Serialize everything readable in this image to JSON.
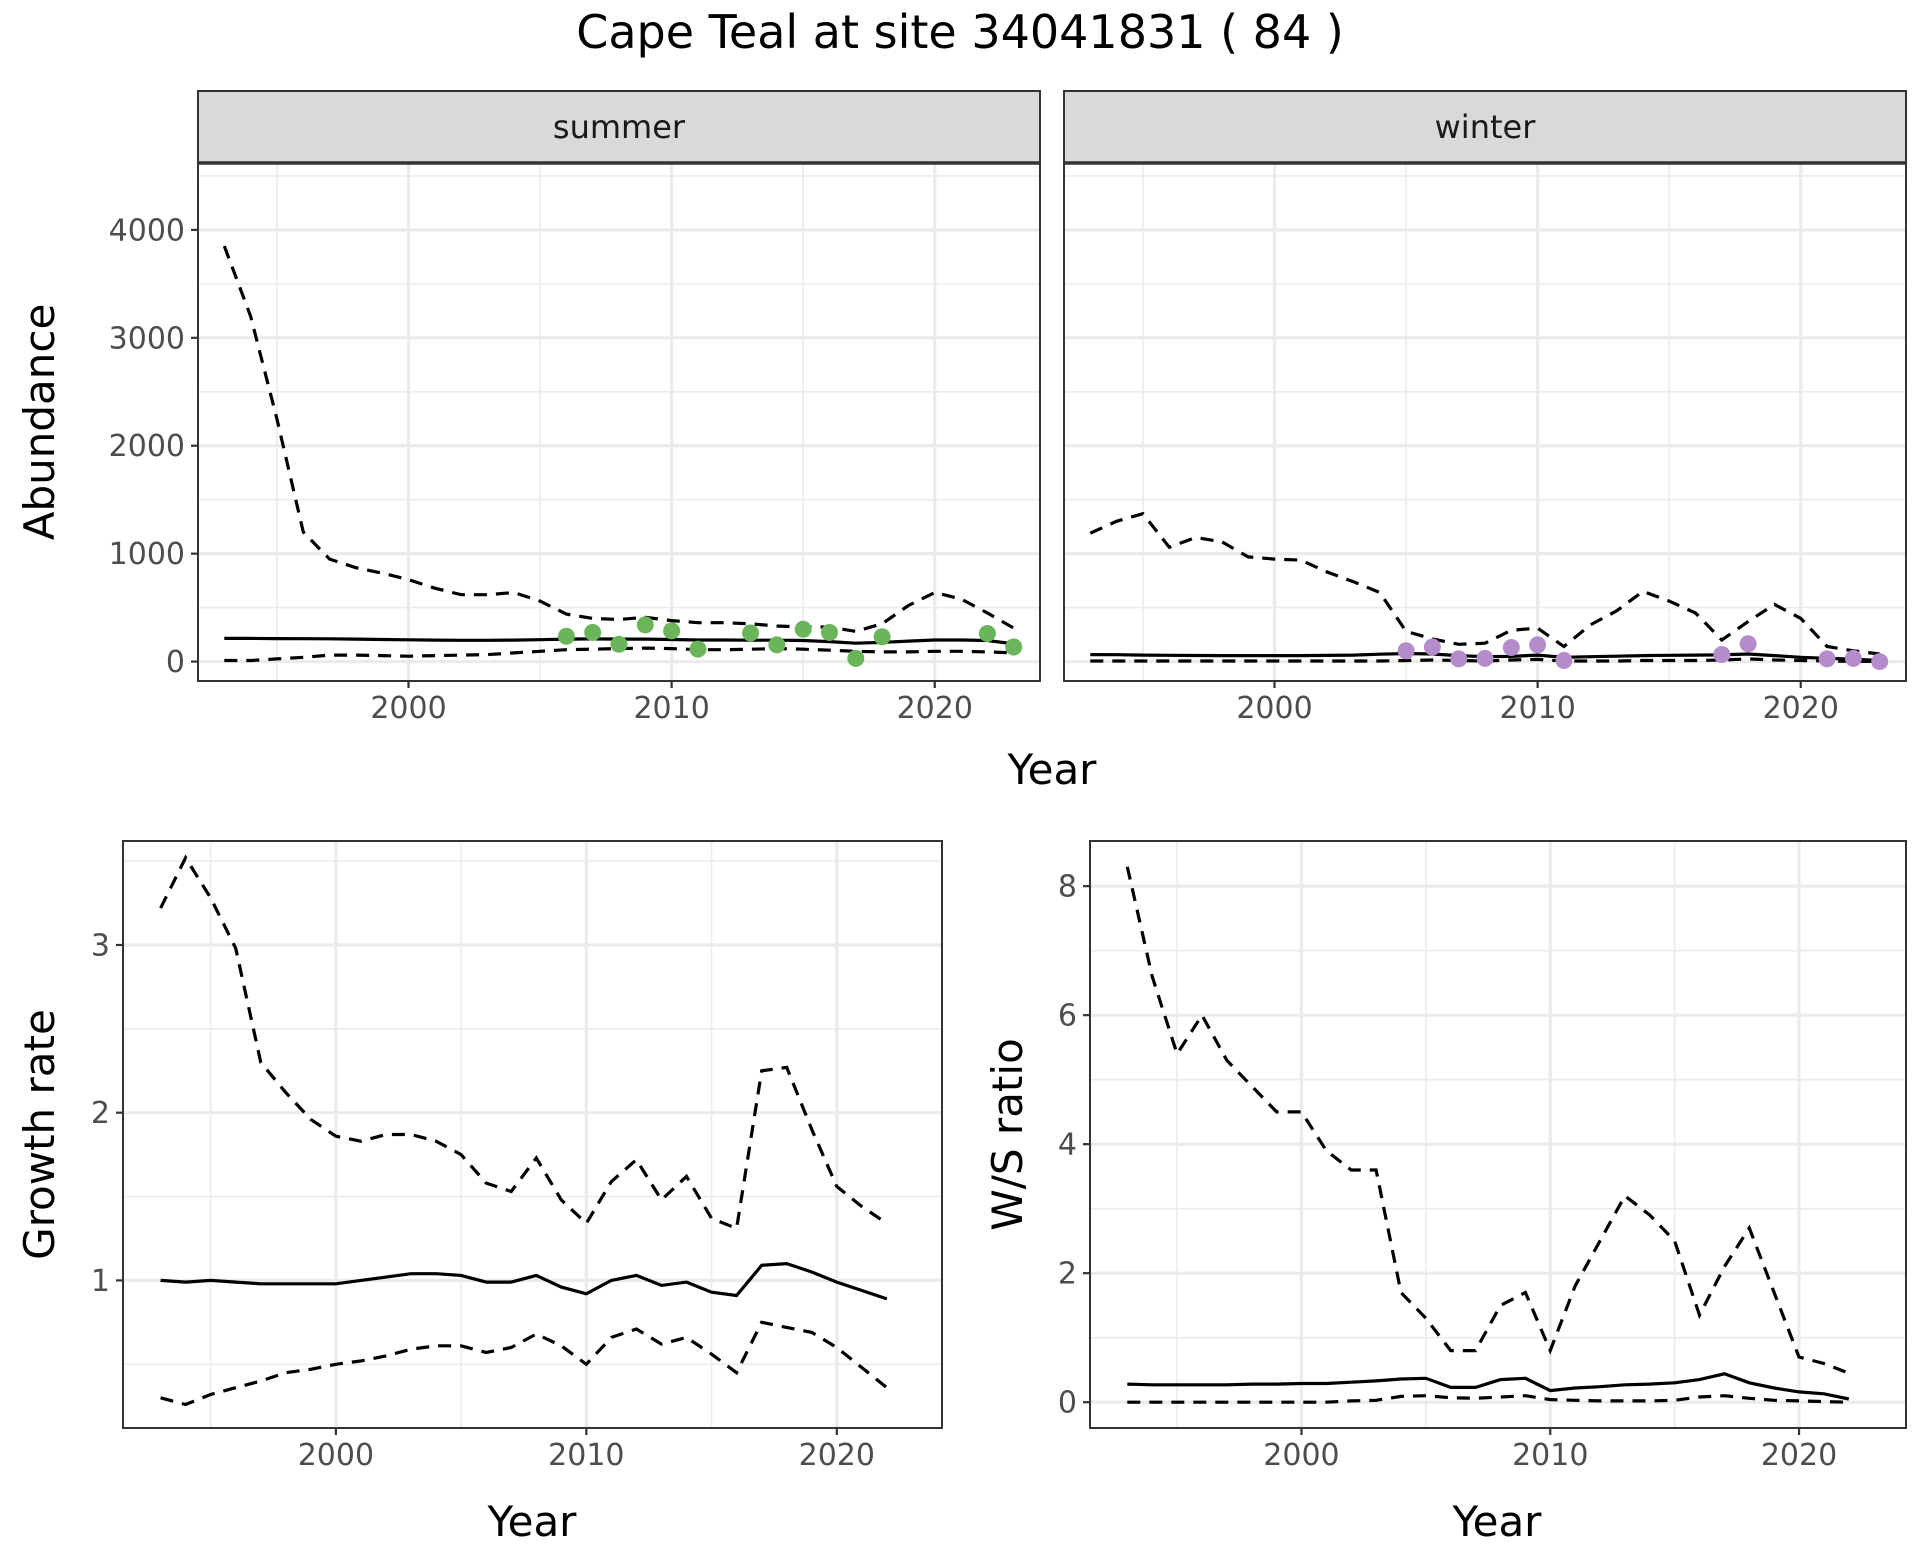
{
  "title": "Cape Teal at site 34041831 ( 84 )",
  "colors": {
    "summer_points": "#6ab55a",
    "winter_points": "#b48ccc",
    "lines": "#000000",
    "strip": "#d9d9d9"
  },
  "chart_data": [
    {
      "type": "line",
      "panel": "summer",
      "strip_label": "summer",
      "xlabel": "Year",
      "ylabel": "Abundance",
      "xlim": [
        1992,
        2024
      ],
      "ylim": [
        -180,
        4620
      ],
      "x_ticks": [
        2000,
        2010,
        2020
      ],
      "x_tick_labels": [
        "2000",
        "2010",
        "2020"
      ],
      "y_ticks": [
        0,
        1000,
        2000,
        3000,
        4000
      ],
      "y_tick_labels": [
        "0",
        "1000",
        "2000",
        "3000",
        "4000"
      ],
      "grid": true,
      "series": [
        {
          "role": "mean",
          "style": "solid",
          "x": [
            1993,
            1994,
            1995,
            1996,
            1997,
            1998,
            1999,
            2000,
            2001,
            2002,
            2003,
            2004,
            2005,
            2006,
            2007,
            2008,
            2009,
            2010,
            2011,
            2012,
            2013,
            2014,
            2015,
            2016,
            2017,
            2018,
            2019,
            2020,
            2021,
            2022,
            2023
          ],
          "y": [
            215,
            215,
            213,
            212,
            211,
            208,
            205,
            202,
            199,
            197,
            197,
            199,
            203,
            208,
            210,
            208,
            208,
            205,
            200,
            200,
            198,
            198,
            195,
            185,
            170,
            178,
            190,
            200,
            200,
            195,
            165
          ]
        },
        {
          "role": "upper",
          "style": "dashed",
          "x": [
            1993,
            1994,
            1995,
            1996,
            1997,
            1998,
            1999,
            2000,
            2001,
            2002,
            2003,
            2004,
            2005,
            2006,
            2007,
            2008,
            2009,
            2010,
            2011,
            2012,
            2013,
            2014,
            2015,
            2016,
            2017,
            2018,
            2019,
            2020,
            2021,
            2022,
            2023
          ],
          "y": [
            3850,
            3200,
            2250,
            1200,
            950,
            870,
            820,
            760,
            680,
            620,
            620,
            640,
            560,
            440,
            400,
            390,
            410,
            380,
            360,
            360,
            350,
            330,
            320,
            320,
            280,
            350,
            520,
            640,
            580,
            450,
            310
          ]
        },
        {
          "role": "lower",
          "style": "dashed",
          "x": [
            1993,
            1994,
            1995,
            1996,
            1997,
            1998,
            1999,
            2000,
            2001,
            2002,
            2003,
            2004,
            2005,
            2006,
            2007,
            2008,
            2009,
            2010,
            2011,
            2012,
            2013,
            2014,
            2015,
            2016,
            2017,
            2018,
            2019,
            2020,
            2021,
            2022,
            2023
          ],
          "y": [
            10,
            10,
            25,
            40,
            60,
            60,
            55,
            50,
            55,
            60,
            65,
            80,
            95,
            110,
            115,
            120,
            125,
            120,
            110,
            110,
            115,
            120,
            115,
            105,
            95,
            90,
            90,
            95,
            95,
            90,
            80
          ]
        }
      ],
      "points": {
        "x": [
          2006,
          2007,
          2008,
          2009,
          2010,
          2011,
          2013,
          2014,
          2015,
          2016,
          2017,
          2018,
          2022,
          2023
        ],
        "y": [
          235,
          270,
          160,
          340,
          285,
          115,
          265,
          155,
          300,
          270,
          30,
          230,
          260,
          135
        ]
      }
    },
    {
      "type": "line",
      "panel": "winter",
      "strip_label": "winter",
      "xlabel": "Year",
      "ylabel": "Abundance",
      "xlim": [
        1992,
        2024
      ],
      "ylim": [
        -180,
        4620
      ],
      "x_ticks": [
        2000,
        2010,
        2020
      ],
      "x_tick_labels": [
        "2000",
        "2010",
        "2020"
      ],
      "y_ticks": [
        0,
        1000,
        2000,
        3000,
        4000
      ],
      "grid": true,
      "series": [
        {
          "role": "mean",
          "style": "solid",
          "x": [
            1993,
            1994,
            1995,
            1996,
            1997,
            1998,
            1999,
            2000,
            2001,
            2002,
            2003,
            2004,
            2005,
            2006,
            2007,
            2008,
            2009,
            2010,
            2011,
            2012,
            2013,
            2014,
            2015,
            2016,
            2017,
            2018,
            2019,
            2020,
            2021,
            2022,
            2023
          ],
          "y": [
            65,
            64,
            60,
            58,
            56,
            55,
            55,
            55,
            55,
            57,
            60,
            68,
            75,
            70,
            55,
            45,
            48,
            60,
            40,
            45,
            50,
            55,
            58,
            60,
            62,
            70,
            55,
            40,
            30,
            22,
            10
          ]
        },
        {
          "role": "upper",
          "style": "dashed",
          "x": [
            1993,
            1994,
            1995,
            1996,
            1997,
            1998,
            1999,
            2000,
            2001,
            2002,
            2003,
            2004,
            2005,
            2006,
            2007,
            2008,
            2009,
            2010,
            2011,
            2012,
            2013,
            2014,
            2015,
            2016,
            2017,
            2018,
            2019,
            2020,
            2021,
            2022,
            2023
          ],
          "y": [
            1190,
            1300,
            1370,
            1060,
            1150,
            1110,
            970,
            950,
            940,
            830,
            740,
            640,
            280,
            210,
            160,
            170,
            290,
            310,
            140,
            340,
            470,
            650,
            560,
            450,
            200,
            370,
            530,
            400,
            140,
            100,
            70
          ]
        },
        {
          "role": "lower",
          "style": "dashed",
          "x": [
            1993,
            1994,
            1995,
            1996,
            1997,
            1998,
            1999,
            2000,
            2001,
            2002,
            2003,
            2004,
            2005,
            2006,
            2007,
            2008,
            2009,
            2010,
            2011,
            2012,
            2013,
            2014,
            2015,
            2016,
            2017,
            2018,
            2019,
            2020,
            2021,
            2022,
            2023
          ],
          "y": [
            5,
            5,
            5,
            5,
            5,
            5,
            5,
            5,
            5,
            5,
            5,
            5,
            10,
            15,
            10,
            5,
            15,
            20,
            5,
            5,
            5,
            10,
            10,
            10,
            15,
            25,
            15,
            10,
            5,
            3,
            2
          ]
        }
      ],
      "points": {
        "x": [
          2005,
          2006,
          2007,
          2008,
          2009,
          2010,
          2011,
          2017,
          2018,
          2021,
          2022,
          2023
        ],
        "y": [
          100,
          135,
          25,
          30,
          130,
          155,
          10,
          65,
          165,
          25,
          30,
          0
        ]
      }
    },
    {
      "type": "line",
      "panel": "growth",
      "xlabel": "Year",
      "ylabel": "Growth rate",
      "xlim": [
        1991.5,
        2024.2
      ],
      "ylim": [
        0.12,
        3.62
      ],
      "x_ticks": [
        2000,
        2010,
        2020
      ],
      "x_tick_labels": [
        "2000",
        "2010",
        "2020"
      ],
      "y_ticks": [
        1,
        2,
        3
      ],
      "y_tick_labels": [
        "1",
        "2",
        "3"
      ],
      "grid": true,
      "series": [
        {
          "role": "mean",
          "style": "solid",
          "x": [
            1993,
            1994,
            1995,
            1996,
            1997,
            1998,
            1999,
            2000,
            2001,
            2002,
            2003,
            2004,
            2005,
            2006,
            2007,
            2008,
            2009,
            2010,
            2011,
            2012,
            2013,
            2014,
            2015,
            2016,
            2017,
            2018,
            2019,
            2020,
            2021,
            2022
          ],
          "y": [
            1.0,
            0.99,
            1.0,
            0.99,
            0.98,
            0.98,
            0.98,
            0.98,
            1.0,
            1.02,
            1.04,
            1.04,
            1.03,
            0.99,
            0.99,
            1.03,
            0.96,
            0.92,
            1.0,
            1.03,
            0.97,
            0.99,
            0.93,
            0.91,
            1.09,
            1.1,
            1.05,
            0.99,
            0.94,
            0.89
          ]
        },
        {
          "role": "upper",
          "style": "dashed",
          "x": [
            1993,
            1994,
            1995,
            1996,
            1997,
            1998,
            1999,
            2000,
            2001,
            2002,
            2003,
            2004,
            2005,
            2006,
            2007,
            2008,
            2009,
            2010,
            2011,
            2012,
            2013,
            2014,
            2015,
            2016,
            2017,
            2018,
            2019,
            2020,
            2021,
            2022
          ],
          "y": [
            3.22,
            3.52,
            3.28,
            2.98,
            2.3,
            2.12,
            1.96,
            1.86,
            1.83,
            1.87,
            1.87,
            1.83,
            1.75,
            1.58,
            1.53,
            1.73,
            1.48,
            1.34,
            1.59,
            1.72,
            1.48,
            1.62,
            1.37,
            1.31,
            2.25,
            2.27,
            1.9,
            1.56,
            1.44,
            1.34
          ]
        },
        {
          "role": "lower",
          "style": "dashed",
          "x": [
            1993,
            1994,
            1995,
            1996,
            1997,
            1998,
            1999,
            2000,
            2001,
            2002,
            2003,
            2004,
            2005,
            2006,
            2007,
            2008,
            2009,
            2010,
            2011,
            2012,
            2013,
            2014,
            2015,
            2016,
            2017,
            2018,
            2019,
            2020,
            2021,
            2022
          ],
          "y": [
            0.3,
            0.26,
            0.32,
            0.36,
            0.4,
            0.45,
            0.47,
            0.5,
            0.52,
            0.55,
            0.59,
            0.61,
            0.61,
            0.57,
            0.6,
            0.68,
            0.61,
            0.5,
            0.66,
            0.71,
            0.62,
            0.66,
            0.56,
            0.45,
            0.75,
            0.72,
            0.69,
            0.6,
            0.48,
            0.36
          ]
        }
      ]
    },
    {
      "type": "line",
      "panel": "ws_ratio",
      "xlabel": "Year",
      "ylabel": "W/S ratio",
      "xlim": [
        1991.5,
        2024.3
      ],
      "ylim": [
        -0.4,
        8.7
      ],
      "x_ticks": [
        2000,
        2010,
        2020
      ],
      "x_tick_labels": [
        "2000",
        "2010",
        "2020"
      ],
      "y_ticks": [
        0,
        2,
        4,
        6,
        8
      ],
      "y_tick_labels": [
        "0",
        "2",
        "4",
        "6",
        "8"
      ],
      "grid": true,
      "series": [
        {
          "role": "mean",
          "style": "solid",
          "x": [
            1993,
            1994,
            1995,
            1996,
            1997,
            1998,
            1999,
            2000,
            2001,
            2002,
            2003,
            2004,
            2005,
            2006,
            2007,
            2008,
            2009,
            2010,
            2011,
            2012,
            2013,
            2014,
            2015,
            2016,
            2017,
            2018,
            2019,
            2020,
            2021,
            2022
          ],
          "y": [
            0.28,
            0.27,
            0.27,
            0.27,
            0.27,
            0.28,
            0.28,
            0.29,
            0.29,
            0.31,
            0.33,
            0.36,
            0.37,
            0.23,
            0.23,
            0.35,
            0.37,
            0.18,
            0.22,
            0.24,
            0.27,
            0.28,
            0.3,
            0.35,
            0.44,
            0.3,
            0.22,
            0.16,
            0.13,
            0.05
          ]
        },
        {
          "role": "upper",
          "style": "dashed",
          "x": [
            1993,
            1994,
            1995,
            1996,
            1997,
            1998,
            1999,
            2000,
            2001,
            2002,
            2003,
            2004,
            2005,
            2006,
            2007,
            2008,
            2009,
            2010,
            2011,
            2012,
            2013,
            2014,
            2015,
            2016,
            2017,
            2018,
            2019,
            2020,
            2021,
            2022
          ],
          "y": [
            8.3,
            6.6,
            5.4,
            6.0,
            5.3,
            4.9,
            4.5,
            4.5,
            3.9,
            3.6,
            3.6,
            1.7,
            1.3,
            0.8,
            0.8,
            1.5,
            1.7,
            0.8,
            1.8,
            2.5,
            3.2,
            2.9,
            2.5,
            1.35,
            2.1,
            2.7,
            1.7,
            0.7,
            0.6,
            0.45
          ]
        },
        {
          "role": "lower",
          "style": "dashed",
          "x": [
            1993,
            1994,
            1995,
            1996,
            1997,
            1998,
            1999,
            2000,
            2001,
            2002,
            2003,
            2004,
            2005,
            2006,
            2007,
            2008,
            2009,
            2010,
            2011,
            2012,
            2013,
            2014,
            2015,
            2016,
            2017,
            2018,
            2019,
            2020,
            2021,
            2022
          ],
          "y": [
            0.0,
            0.0,
            0.0,
            0.0,
            0.0,
            0.0,
            0.0,
            0.0,
            0.0,
            0.02,
            0.03,
            0.09,
            0.1,
            0.07,
            0.06,
            0.08,
            0.1,
            0.04,
            0.03,
            0.02,
            0.02,
            0.02,
            0.03,
            0.08,
            0.1,
            0.06,
            0.03,
            0.02,
            0.01,
            0.0
          ]
        }
      ]
    }
  ]
}
